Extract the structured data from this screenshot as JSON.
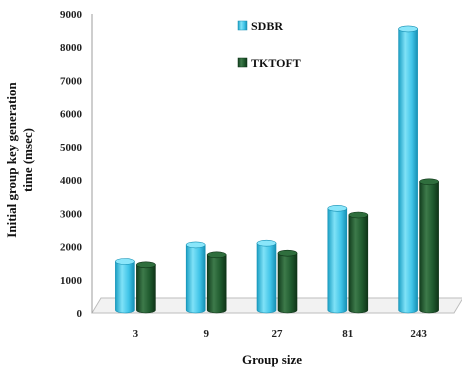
{
  "chart_data": {
    "type": "bar",
    "title": "",
    "xlabel": "Group size",
    "ylabel_line1": "Initial group key generation",
    "ylabel_line2": "time (msec)",
    "categories": [
      "3",
      "9",
      "27",
      "81",
      "243"
    ],
    "ylim": [
      0,
      9000
    ],
    "yticks": [
      "0",
      "1000",
      "2000",
      "3000",
      "4000",
      "5000",
      "6000",
      "7000",
      "8000",
      "9000"
    ],
    "series": [
      {
        "name": "SDBR",
        "values": [
          1550,
          2050,
          2100,
          3150,
          8550
        ],
        "color": "#40c4e8"
      },
      {
        "name": "TKTOFT",
        "values": [
          1450,
          1750,
          1800,
          2950,
          3950
        ],
        "color": "#1f5a2e"
      }
    ],
    "legend_position": "top-center",
    "grid": false
  }
}
